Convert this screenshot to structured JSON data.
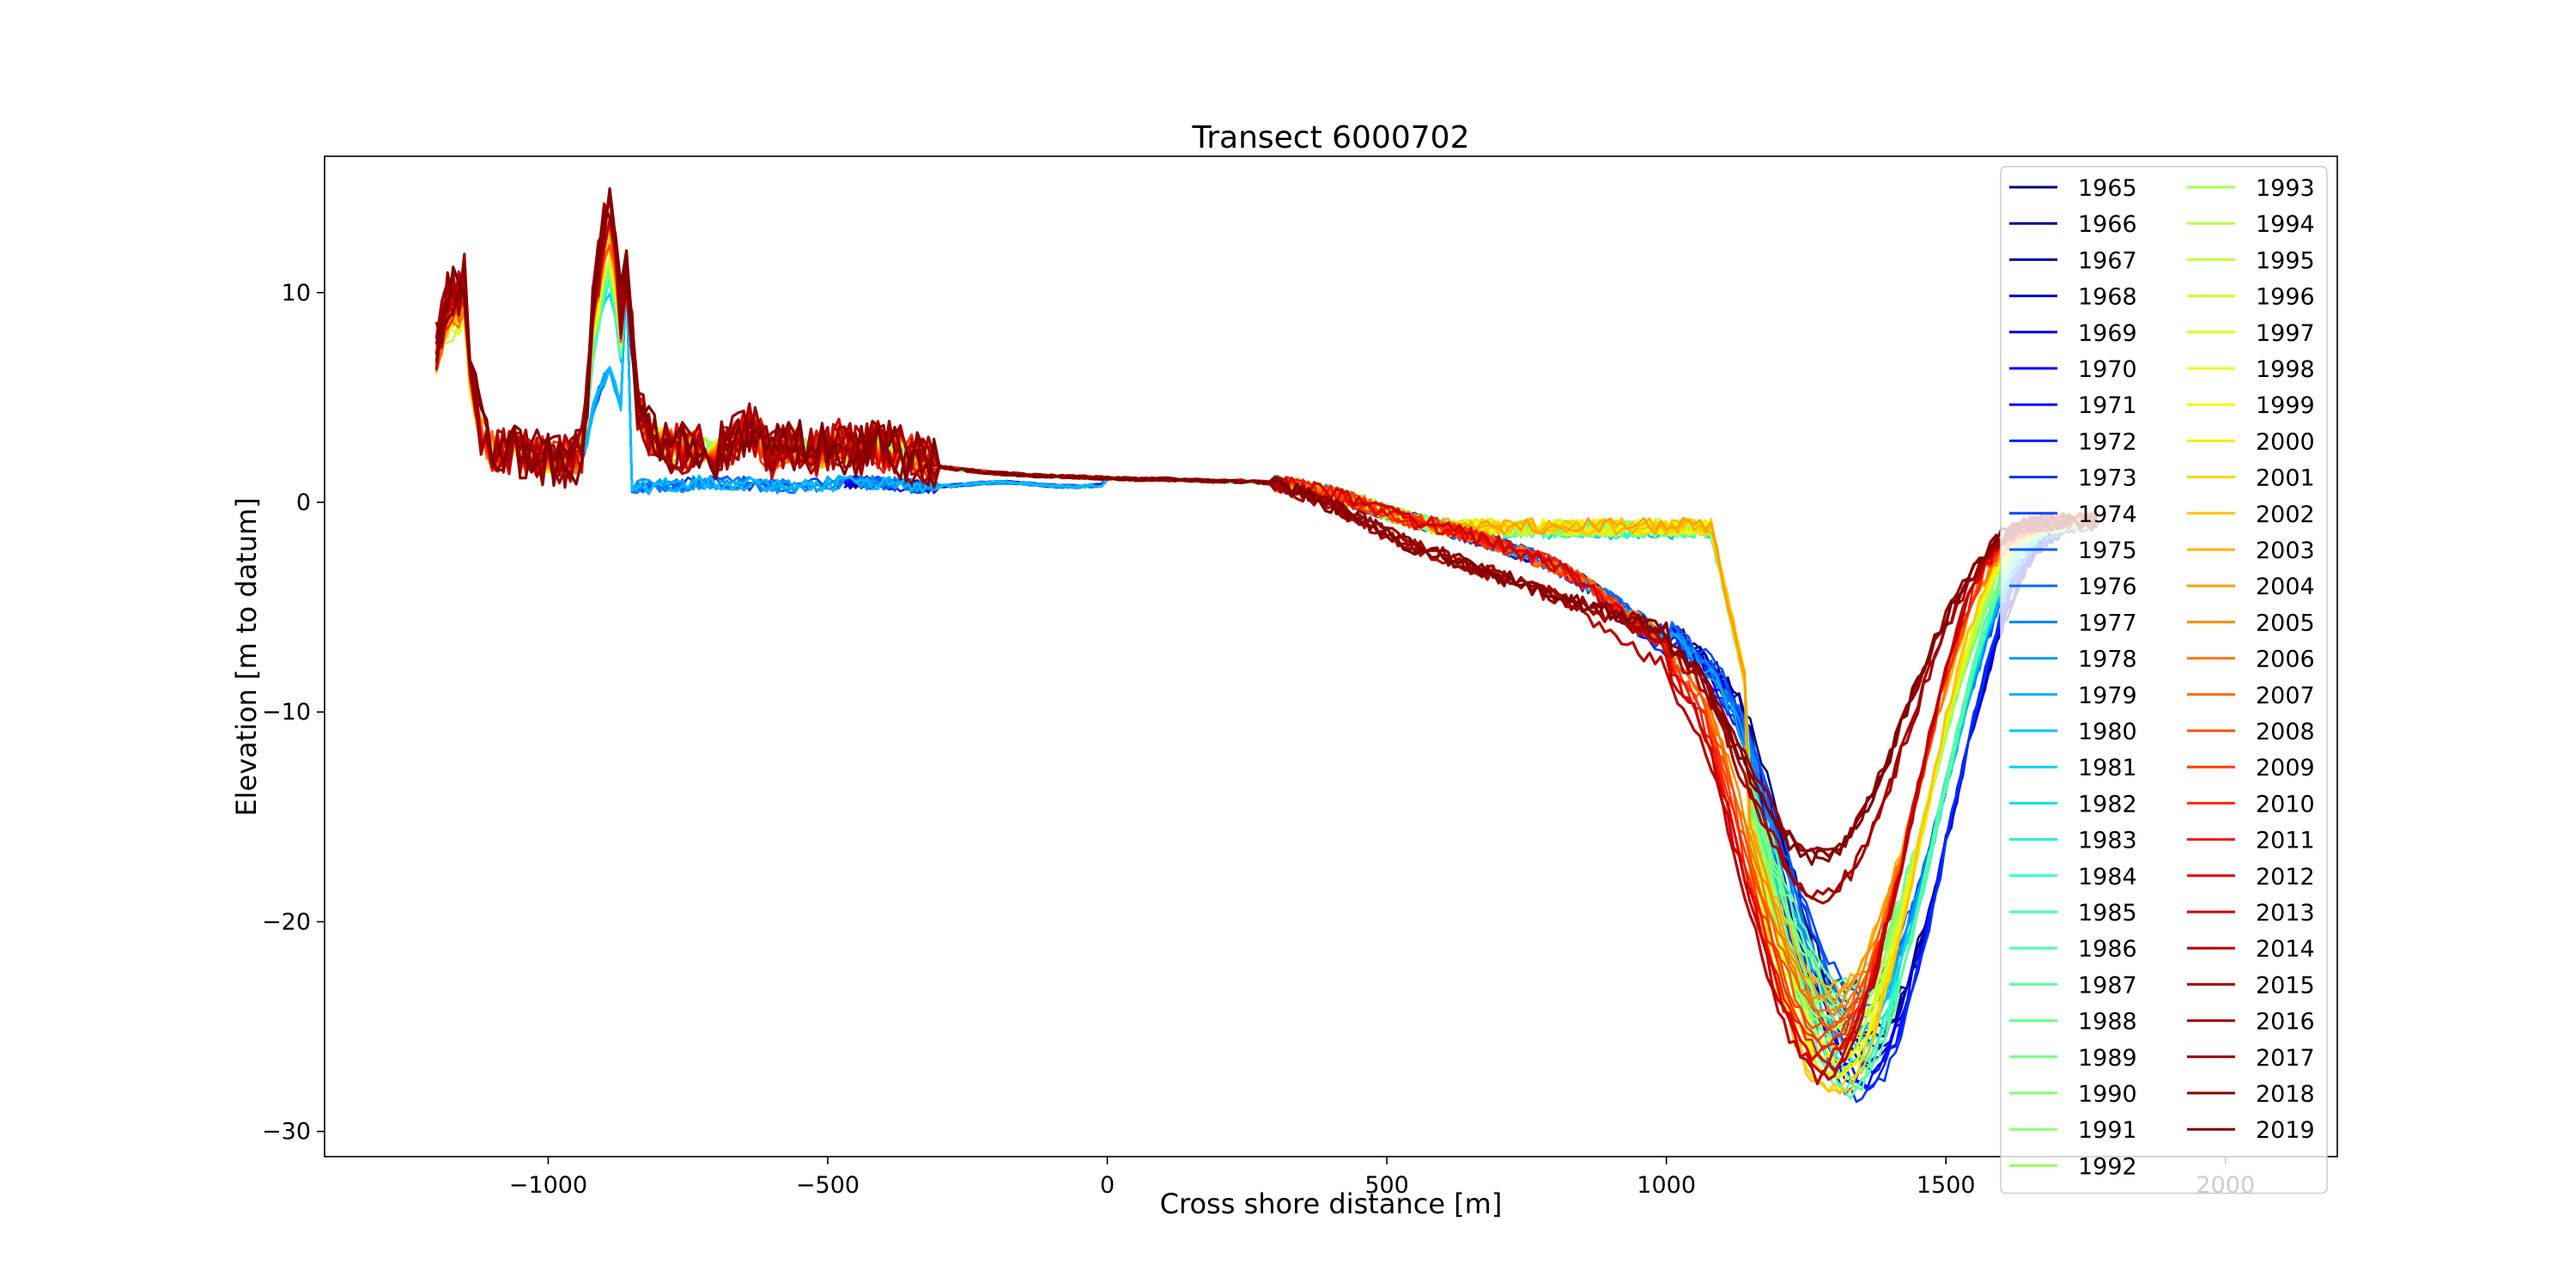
{
  "chart_data": {
    "type": "line",
    "title": "Transect 6000702",
    "xlabel": "Cross shore distance [m]",
    "ylabel": "Elevation [m to datum]",
    "xlim": [
      -1400,
      2200
    ],
    "ylim": [
      -31.2,
      16.5
    ],
    "xticks": [
      -1000,
      -500,
      0,
      500,
      1000,
      1500,
      2000
    ],
    "xtick_labels": [
      "−1000",
      "−500",
      "0",
      "500",
      "1000",
      "1500",
      "2000"
    ],
    "yticks": [
      10,
      0,
      -10,
      -20,
      -30
    ],
    "ytick_labels": [
      "10",
      "0",
      "−10",
      "−20",
      "−30"
    ],
    "grid": false,
    "legend_position": "top-right",
    "legend_columns": 2,
    "colormap": "jet",
    "years": [
      "1965",
      "1966",
      "1967",
      "1968",
      "1969",
      "1970",
      "1971",
      "1972",
      "1973",
      "1974",
      "1975",
      "1976",
      "1977",
      "1978",
      "1979",
      "1980",
      "1981",
      "1982",
      "1983",
      "1984",
      "1985",
      "1986",
      "1987",
      "1988",
      "1989",
      "1990",
      "1991",
      "1992",
      "1993",
      "1994",
      "1995",
      "1996",
      "1997",
      "1998",
      "1999",
      "2000",
      "2001",
      "2002",
      "2003",
      "2004",
      "2005",
      "2006",
      "2007",
      "2008",
      "2009",
      "2010",
      "2011",
      "2012",
      "2013",
      "2014",
      "2015",
      "2016",
      "2017",
      "2018",
      "2019"
    ],
    "colors": [
      "#00007f",
      "#000092",
      "#0000a8",
      "#0000c8",
      "#0000e3",
      "#0000ff",
      "#0008ff",
      "#001cff",
      "#0030ff",
      "#0044ff",
      "#0058ff",
      "#006cff",
      "#0084ff",
      "#0098ff",
      "#00acff",
      "#00c0ff",
      "#00d4e8",
      "#0ee4dc",
      "#1ff0d3",
      "#33ffc4",
      "#3fffb7",
      "#4cffaa",
      "#59ff9d",
      "#66ff90",
      "#72ff84",
      "#7fff77",
      "#8cff6a",
      "#98ff5e",
      "#a5ff51",
      "#b2ff44",
      "#bfff37",
      "#cbff2b",
      "#d8ff1e",
      "#e5ff11",
      "#f1fc06",
      "#ffea00",
      "#ffd700",
      "#ffc400",
      "#ffb100",
      "#ff9e00",
      "#ff8b00",
      "#ff7700",
      "#ff6400",
      "#ff5100",
      "#ff3e00",
      "#ff2b00",
      "#f61800",
      "#e30600",
      "#d00000",
      "#bd0000",
      "#aa0000",
      "#a50000",
      "#970000",
      "#8a0000",
      "#7f0000"
    ],
    "base_profile": {
      "x": [
        -1200,
        -1180,
        -1160,
        -1150,
        -1140,
        -1120,
        -1100,
        -1060,
        -1000,
        -960,
        -940,
        -930,
        -925,
        -920,
        -910,
        -900,
        -890,
        -880,
        -870,
        -860,
        -850,
        -840,
        -820,
        -800,
        -780,
        -760,
        -740,
        -720,
        -700,
        -680,
        -660,
        -640,
        -620,
        -600,
        -580,
        -560,
        -540,
        -520,
        -500,
        -480,
        -460,
        -440,
        -420,
        -400,
        -380,
        -360,
        -340,
        -320,
        -300,
        -260,
        -220,
        -200,
        -150,
        -100,
        -50,
        0,
        50,
        100,
        150,
        200,
        250,
        300,
        350,
        400,
        450,
        500,
        550,
        600,
        650,
        700,
        750,
        800,
        850,
        900,
        950,
        1000,
        1050,
        1080,
        1100,
        1120,
        1140,
        1160,
        1180,
        1200,
        1220,
        1240,
        1260,
        1280,
        1300,
        1320,
        1340,
        1360,
        1380,
        1400,
        1420,
        1440,
        1460,
        1480,
        1500,
        1520,
        1540,
        1560,
        1580,
        1600,
        1620,
        1640,
        1660,
        1680,
        1700,
        1720,
        1740,
        1760
      ],
      "y": [
        7.5,
        9.5,
        9.8,
        10.4,
        6.5,
        3.4,
        2.5,
        2.3,
        2.1,
        2.0,
        2.5,
        5.0,
        7.0,
        9.0,
        11.0,
        13.0,
        13.8,
        12.0,
        9.0,
        11.0,
        8.0,
        4.5,
        3.2,
        2.9,
        2.7,
        2.6,
        2.5,
        2.5,
        2.4,
        2.6,
        3.0,
        3.6,
        2.9,
        2.3,
        2.6,
        2.8,
        2.6,
        2.4,
        2.4,
        2.8,
        2.6,
        2.3,
        2.9,
        2.5,
        2.6,
        2.3,
        2.1,
        1.9,
        1.7,
        1.55,
        1.45,
        1.4,
        1.3,
        1.25,
        1.2,
        1.15,
        1.1,
        1.1,
        1.05,
        1.0,
        1.0,
        0.9,
        0.7,
        0.4,
        0.0,
        -0.5,
        -0.9,
        -1.2,
        -1.6,
        -2.0,
        -2.5,
        -3.0,
        -3.8,
        -4.7,
        -5.7,
        -6.7,
        -8.2,
        -9.3,
        -10.5,
        -12.2,
        -14.0,
        -16.0,
        -17.8,
        -19.6,
        -21.2,
        -22.6,
        -23.8,
        -24.6,
        -25.0,
        -25.0,
        -24.6,
        -23.8,
        -22.6,
        -21.0,
        -19.2,
        -17.2,
        -15.0,
        -12.8,
        -10.6,
        -8.6,
        -6.8,
        -5.2,
        -3.9,
        -2.9,
        -2.1,
        -1.6,
        -1.3,
        -1.1,
        -1.0,
        -0.95,
        -0.9,
        -0.9
      ]
    }
  }
}
